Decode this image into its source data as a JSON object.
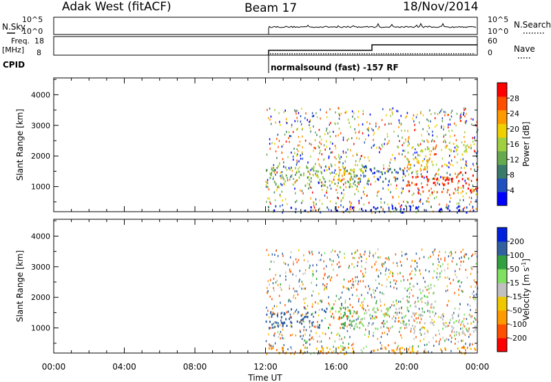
{
  "header": {
    "station": "Adak West (fitACF)",
    "beam": "Beam 17",
    "date": "18/Nov/2014"
  },
  "top_strip": {
    "nsky_label": "N.Sky",
    "nsearch_label": "N.Search",
    "left_ticks": [
      "10^5",
      "10^0"
    ],
    "right_ticks": [
      "10^5",
      "10^0"
    ],
    "freq_label": "Freq.",
    "freq_unit": "[MHz]",
    "freq_ticks": [
      "18",
      "8"
    ],
    "nave_label": "Nave",
    "nave_ticks": [
      "60",
      "0"
    ],
    "cpid_label": "CPID",
    "cpid_text": "normalsound (fast) -157 RF"
  },
  "colors": {
    "power": [
      "#0000ff",
      "#2050c0",
      "#3a7a6a",
      "#66aa50",
      "#a0d040",
      "#f0d000",
      "#ff9900",
      "#ff5000",
      "#ff0000"
    ],
    "velocity": [
      "#ff0000",
      "#ff5000",
      "#ff9900",
      "#f0c800",
      "#c0c0c0",
      "#80e060",
      "#30a040",
      "#3060a0",
      "#0020e0"
    ]
  },
  "chart_data": [
    {
      "type": "heatmap",
      "panel": "power",
      "ylabel": "Slant Range [km]",
      "xlabel": "",
      "x_ticks": [
        "00:00",
        "04:00",
        "08:00",
        "12:00",
        "16:00",
        "20:00",
        "00:00"
      ],
      "y_ticks": [
        1000,
        2000,
        3000,
        4000
      ],
      "ylim": [
        180,
        4550
      ],
      "xlim_hours": [
        0,
        24
      ],
      "colorbar_label": "Power [dB]",
      "colorbar_ticks": [
        "4",
        "8",
        "12",
        "16",
        "20",
        "24",
        "28"
      ],
      "regions": [
        {
          "t": [
            12.0,
            24.0
          ],
          "range": [
            180,
            400
          ],
          "level": 4
        },
        {
          "t": [
            12.0,
            17.5
          ],
          "range": [
            1000,
            1700
          ],
          "level": 14
        },
        {
          "t": [
            15.5,
            17.0
          ],
          "range": [
            1100,
            1700
          ],
          "level": 20
        },
        {
          "t": [
            17.5,
            19.8
          ],
          "range": [
            1100,
            1700
          ],
          "level": 6
        },
        {
          "t": [
            20.0,
            24.0
          ],
          "range": [
            800,
            1500
          ],
          "level": 28
        },
        {
          "t": [
            20.0,
            21.5
          ],
          "range": [
            1500,
            2500
          ],
          "level": 20
        },
        {
          "t": [
            22.0,
            23.5
          ],
          "range": [
            2000,
            2500
          ],
          "level": 18
        }
      ]
    },
    {
      "type": "heatmap",
      "panel": "velocity",
      "ylabel": "Slant Range [km]",
      "xlabel": "Time UT",
      "x_ticks": [
        "00:00",
        "04:00",
        "08:00",
        "12:00",
        "16:00",
        "20:00",
        "00:00"
      ],
      "y_ticks": [
        1000,
        2000,
        3000,
        4000
      ],
      "ylim": [
        180,
        4550
      ],
      "xlim_hours": [
        0,
        24
      ],
      "colorbar_label": "Velocity [m s",
      "colorbar_sup": "-1",
      "colorbar_ticks": [
        "200",
        "100",
        "50",
        "15",
        "-15",
        "-50",
        "-100",
        "-200"
      ],
      "regions": [
        {
          "t": [
            12.0,
            24.0
          ],
          "range": [
            180,
            400
          ],
          "level": -60
        },
        {
          "t": [
            12.0,
            15.5
          ],
          "range": [
            1000,
            1700
          ],
          "level": 180
        },
        {
          "t": [
            15.5,
            17.0
          ],
          "range": [
            1000,
            1700
          ],
          "level": 60
        },
        {
          "t": [
            17.0,
            20.0
          ],
          "range": [
            1000,
            1700
          ],
          "level": 20
        },
        {
          "t": [
            20.0,
            24.0
          ],
          "range": [
            800,
            1500
          ],
          "level": 0
        },
        {
          "t": [
            20.0,
            21.5
          ],
          "range": [
            1500,
            2500
          ],
          "level": 5
        }
      ]
    }
  ]
}
